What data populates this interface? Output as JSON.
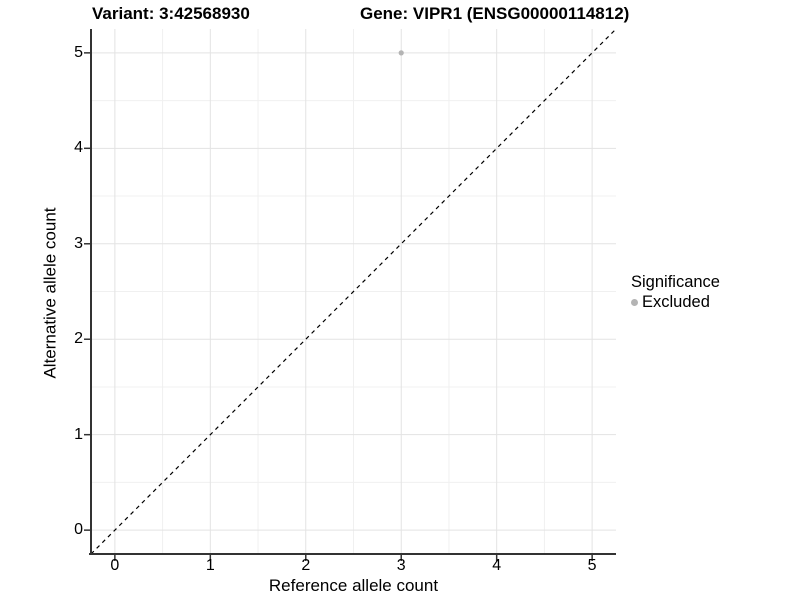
{
  "titles": {
    "left": "Variant: 3:42568930",
    "right": "Gene: VIPR1 (ENSG00000114812)"
  },
  "chart_data": {
    "type": "scatter",
    "title_left": "Variant: 3:42568930",
    "title_right": "Gene: VIPR1 (ENSG00000114812)",
    "xlabel": "Reference allele count",
    "ylabel": "Alternative allele count",
    "xlim": [
      -0.25,
      5.25
    ],
    "ylim": [
      -0.25,
      5.25
    ],
    "xticks": [
      0,
      1,
      2,
      3,
      4,
      5
    ],
    "yticks": [
      0,
      1,
      2,
      3,
      4,
      5
    ],
    "xminor": [
      0.5,
      1.5,
      2.5,
      3.5,
      4.5
    ],
    "yminor": [
      0.5,
      1.5,
      2.5,
      3.5,
      4.5
    ],
    "grid": true,
    "series": [
      {
        "name": "Excluded",
        "color": "#b4b4b4",
        "points": [
          {
            "x": 3,
            "y": 5
          }
        ]
      }
    ],
    "abline": {
      "slope": 1,
      "intercept": 0,
      "line_style": "dashed",
      "color": "#000000"
    },
    "legend": {
      "title": "Significance",
      "position": "right",
      "items": [
        {
          "label": "Excluded",
          "color": "#b4b4b4"
        }
      ]
    },
    "colors": {
      "grid_major": "#e3e3e3",
      "grid_minor": "#f0f0f0",
      "axis": "#333333",
      "point": "#b4b4b4",
      "background": "#ffffff"
    }
  }
}
